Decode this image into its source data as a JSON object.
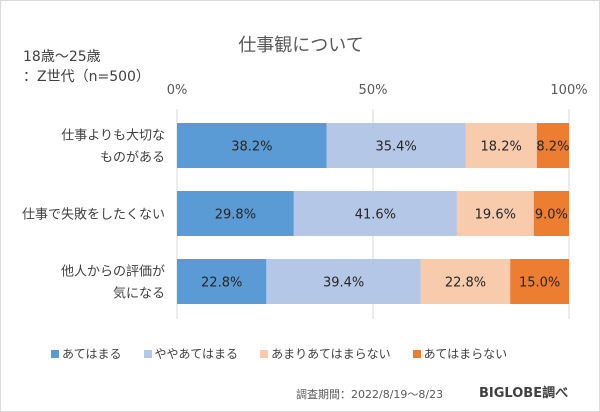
{
  "chart_data": {
    "type": "bar",
    "stacked": true,
    "orientation": "horizontal",
    "title": "仕事観について",
    "subtitle": "18歳～25歳\n：Z世代（n=500）",
    "categories": [
      "仕事よりも大切な\nものがある",
      "仕事で失敗をしたくない",
      "他人からの評価が\n気になる"
    ],
    "xlim": [
      0,
      100
    ],
    "ticks": [
      "0%",
      "50%",
      "100%"
    ],
    "grid": true,
    "legend_position": "bottom",
    "series": [
      {
        "name": "あてはまる",
        "color": "#5b9bd5",
        "values": [
          38.2,
          29.8,
          22.8
        ]
      },
      {
        "name": "ややあてはまる",
        "color": "#b4c7e7",
        "values": [
          35.4,
          41.6,
          39.4
        ]
      },
      {
        "name": "あまりあてはまらない",
        "color": "#f8cbad",
        "values": [
          18.2,
          19.6,
          22.8
        ]
      },
      {
        "name": "あてはまらない",
        "color": "#ed7d31",
        "values": [
          8.2,
          9.0,
          15.0
        ]
      }
    ]
  },
  "footer": {
    "source": "調査期間：2022/8/19～8/23",
    "brand": "BIGLOBE調べ"
  }
}
